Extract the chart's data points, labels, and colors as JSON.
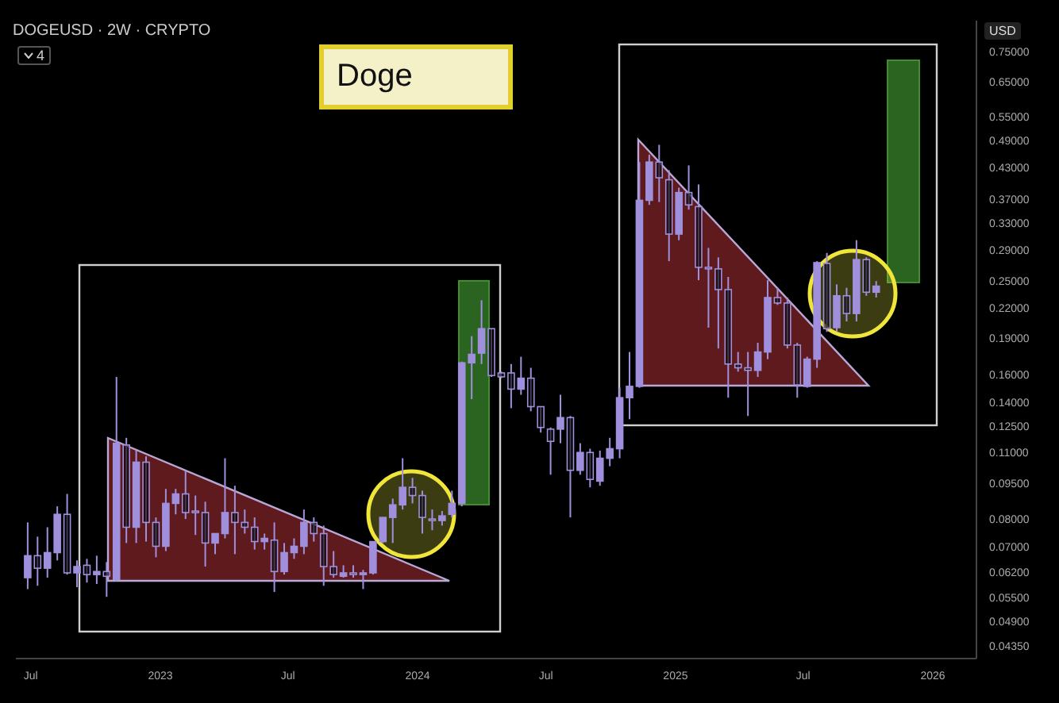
{
  "chart_data": {
    "type": "candlestick",
    "title": "DOGEUSD · 2W · CRYPTO",
    "ylabel": "USD",
    "annotations": [
      "Doge",
      "4"
    ],
    "log": true,
    "color": "#a08fdc",
    "x": [
      "2022-06-27",
      "2022-07-11",
      "2022-07-25",
      "2022-08-08",
      "2022-08-22",
      "2022-09-05",
      "2022-09-19",
      "2022-10-03",
      "2022-10-17",
      "2022-10-31",
      "2022-11-14",
      "2022-11-28",
      "2022-12-12",
      "2022-12-26",
      "2023-01-09",
      "2023-01-23",
      "2023-02-06",
      "2023-02-20",
      "2023-03-06",
      "2023-03-20",
      "2023-04-03",
      "2023-04-17",
      "2023-05-01",
      "2023-05-15",
      "2023-05-29",
      "2023-06-12",
      "2023-06-26",
      "2023-07-10",
      "2023-07-24",
      "2023-08-07",
      "2023-08-21",
      "2023-09-04",
      "2023-09-18",
      "2023-10-02",
      "2023-10-16",
      "2023-10-30",
      "2023-11-13",
      "2023-11-27",
      "2023-12-11",
      "2023-12-25",
      "2024-01-08",
      "2024-01-22",
      "2024-02-05",
      "2024-02-19",
      "2024-03-04",
      "2024-03-18",
      "2024-04-01",
      "2024-04-15",
      "2024-04-29",
      "2024-05-13",
      "2024-05-27",
      "2024-06-10",
      "2024-06-24",
      "2024-07-08",
      "2024-07-22",
      "2024-08-05",
      "2024-08-19",
      "2024-09-02",
      "2024-09-16",
      "2024-09-30",
      "2024-10-14",
      "2024-10-28",
      "2024-11-11",
      "2024-11-25",
      "2024-12-09",
      "2024-12-23",
      "2025-01-06",
      "2025-01-20",
      "2025-02-03",
      "2025-02-17",
      "2025-03-03",
      "2025-03-17",
      "2025-03-31",
      "2025-04-14",
      "2025-04-28",
      "2025-05-12",
      "2025-05-26",
      "2025-06-09",
      "2025-06-23",
      "2025-07-07",
      "2025-07-21",
      "2025-08-04",
      "2025-08-18",
      "2025-09-01",
      "2025-09-15",
      "2025-09-29",
      "2025-10-13"
    ],
    "ohlc": [
      [
        0.0604,
        0.0787,
        0.0572,
        0.0671
      ],
      [
        0.0671,
        0.0735,
        0.0581,
        0.0632
      ],
      [
        0.0632,
        0.0769,
        0.0604,
        0.0681
      ],
      [
        0.0681,
        0.085,
        0.0656,
        0.0818
      ],
      [
        0.0818,
        0.0902,
        0.0613,
        0.0618
      ],
      [
        0.0618,
        0.0656,
        0.0577,
        0.0637
      ],
      [
        0.0641,
        0.0661,
        0.059,
        0.0613
      ],
      [
        0.0613,
        0.0671,
        0.0586,
        0.0622
      ],
      [
        0.0622,
        0.0651,
        0.0551,
        0.0608
      ],
      [
        0.0599,
        0.158,
        0.0595,
        0.115
      ],
      [
        0.114,
        0.118,
        0.0713,
        0.0769
      ],
      [
        0.0769,
        0.111,
        0.0713,
        0.105
      ],
      [
        0.105,
        0.108,
        0.0718,
        0.0787
      ],
      [
        0.0787,
        0.0806,
        0.0666,
        0.0702
      ],
      [
        0.0702,
        0.0924,
        0.0686,
        0.0862
      ],
      [
        0.0862,
        0.0924,
        0.0818,
        0.0902
      ],
      [
        0.0902,
        0.101,
        0.08,
        0.0825
      ],
      [
        0.0831,
        0.0895,
        0.0741,
        0.0829
      ],
      [
        0.0825,
        0.0869,
        0.0637,
        0.0713
      ],
      [
        0.0713,
        0.0746,
        0.0676,
        0.0746
      ],
      [
        0.0746,
        0.107,
        0.0729,
        0.0825
      ],
      [
        0.0825,
        0.0938,
        0.0676,
        0.0787
      ],
      [
        0.0787,
        0.0837,
        0.0746,
        0.0769
      ],
      [
        0.0769,
        0.0806,
        0.0691,
        0.0718
      ],
      [
        0.0718,
        0.0746,
        0.0691,
        0.0729
      ],
      [
        0.0723,
        0.0787,
        0.0564,
        0.0622
      ],
      [
        0.0622,
        0.0713,
        0.0613,
        0.0681
      ],
      [
        0.0681,
        0.0729,
        0.0661,
        0.0702
      ],
      [
        0.0702,
        0.0837,
        0.0676,
        0.0787
      ],
      [
        0.0787,
        0.0806,
        0.0718,
        0.0746
      ],
      [
        0.0746,
        0.0775,
        0.0581,
        0.0637
      ],
      [
        0.0637,
        0.0686,
        0.0604,
        0.0613
      ],
      [
        0.0608,
        0.0641,
        0.0604,
        0.0618
      ],
      [
        0.0618,
        0.0641,
        0.0604,
        0.0613
      ],
      [
        0.0613,
        0.0627,
        0.0572,
        0.0618
      ],
      [
        0.0618,
        0.0718,
        0.0613,
        0.0718
      ],
      [
        0.0718,
        0.0806,
        0.0713,
        0.0806
      ],
      [
        0.0806,
        0.0882,
        0.0713,
        0.0856
      ],
      [
        0.0856,
        0.107,
        0.0837,
        0.0931
      ],
      [
        0.0931,
        0.0974,
        0.0862,
        0.0895
      ],
      [
        0.0895,
        0.0916,
        0.0746,
        0.0806
      ],
      [
        0.08,
        0.0837,
        0.0758,
        0.0794
      ],
      [
        0.0794,
        0.0831,
        0.0775,
        0.0812
      ],
      [
        0.0818,
        0.0916,
        0.0806,
        0.0862
      ],
      [
        0.0862,
        0.17,
        0.085,
        0.169
      ],
      [
        0.169,
        0.192,
        0.142,
        0.176
      ],
      [
        0.177,
        0.228,
        0.168,
        0.199
      ],
      [
        0.199,
        0.199,
        0.158,
        0.159
      ],
      [
        0.161,
        0.162,
        0.157,
        0.158
      ],
      [
        0.161,
        0.168,
        0.136,
        0.149
      ],
      [
        0.149,
        0.174,
        0.145,
        0.157
      ],
      [
        0.157,
        0.165,
        0.134,
        0.137
      ],
      [
        0.137,
        0.137,
        0.121,
        0.124
      ],
      [
        0.123,
        0.124,
        0.0989,
        0.116
      ],
      [
        0.123,
        0.145,
        0.115,
        0.13
      ],
      [
        0.13,
        0.131,
        0.0806,
        0.101
      ],
      [
        0.101,
        0.115,
        0.0989,
        0.11
      ],
      [
        0.11,
        0.112,
        0.0931,
        0.0967
      ],
      [
        0.0959,
        0.111,
        0.0938,
        0.107
      ],
      [
        0.107,
        0.118,
        0.103,
        0.112
      ],
      [
        0.112,
        0.15,
        0.107,
        0.143
      ],
      [
        0.143,
        0.178,
        0.129,
        0.151
      ],
      [
        0.151,
        0.442,
        0.15,
        0.368
      ],
      [
        0.368,
        0.458,
        0.36,
        0.442
      ],
      [
        0.442,
        0.48,
        0.365,
        0.41
      ],
      [
        0.406,
        0.425,
        0.275,
        0.313
      ],
      [
        0.313,
        0.391,
        0.304,
        0.382
      ],
      [
        0.382,
        0.435,
        0.352,
        0.36
      ],
      [
        0.357,
        0.397,
        0.251,
        0.267
      ],
      [
        0.267,
        0.293,
        0.2,
        0.265
      ],
      [
        0.265,
        0.28,
        0.181,
        0.24
      ],
      [
        0.24,
        0.255,
        0.143,
        0.168
      ],
      [
        0.168,
        0.178,
        0.162,
        0.165
      ],
      [
        0.165,
        0.178,
        0.131,
        0.163
      ],
      [
        0.163,
        0.186,
        0.158,
        0.178
      ],
      [
        0.178,
        0.251,
        0.172,
        0.231
      ],
      [
        0.231,
        0.242,
        0.223,
        0.225
      ],
      [
        0.225,
        0.231,
        0.181,
        0.184
      ],
      [
        0.184,
        0.186,
        0.143,
        0.152
      ],
      [
        0.151,
        0.174,
        0.15,
        0.172
      ],
      [
        0.172,
        0.275,
        0.165,
        0.273
      ],
      [
        0.272,
        0.286,
        0.196,
        0.199
      ],
      [
        0.2,
        0.246,
        0.196,
        0.233
      ],
      [
        0.233,
        0.242,
        0.206,
        0.214
      ],
      [
        0.214,
        0.304,
        0.206,
        0.277
      ],
      [
        0.277,
        0.28,
        0.233,
        0.237
      ],
      [
        0.237,
        0.25,
        0.231,
        0.244
      ]
    ],
    "xlim": [
      "2022-06-10",
      "2026-03-04"
    ],
    "xticks": [
      {
        "value": "2022-07-01",
        "label": "Jul"
      },
      {
        "value": "2023-01-01",
        "label": "2023"
      },
      {
        "value": "2023-07-01",
        "label": "Jul"
      },
      {
        "value": "2024-01-01",
        "label": "2024"
      },
      {
        "value": "2024-07-01",
        "label": "Jul"
      },
      {
        "value": "2025-01-01",
        "label": "2025"
      },
      {
        "value": "2025-07-01",
        "label": "Jul"
      },
      {
        "value": "2026-01-01",
        "label": "2026"
      }
    ],
    "ylim": [
      0.041,
      0.87
    ],
    "yticks": [
      {
        "value": 0.0435,
        "label": "0.04350"
      },
      {
        "value": 0.049,
        "label": "0.04900"
      },
      {
        "value": 0.055,
        "label": "0.05500"
      },
      {
        "value": 0.062,
        "label": "0.06200"
      },
      {
        "value": 0.07,
        "label": "0.07000"
      },
      {
        "value": 0.08,
        "label": "0.08000"
      },
      {
        "value": 0.095,
        "label": "0.09500"
      },
      {
        "value": 0.11,
        "label": "0.11000"
      },
      {
        "value": 0.125,
        "label": "0.12500"
      },
      {
        "value": 0.14,
        "label": "0.14000"
      },
      {
        "value": 0.16,
        "label": "0.16000"
      },
      {
        "value": 0.19,
        "label": "0.19000"
      },
      {
        "value": 0.22,
        "label": "0.22000"
      },
      {
        "value": 0.25,
        "label": "0.25000"
      },
      {
        "value": 0.29,
        "label": "0.29000"
      },
      {
        "value": 0.33,
        "label": "0.33000"
      },
      {
        "value": 0.37,
        "label": "0.37000"
      },
      {
        "value": 0.43,
        "label": "0.43000"
      },
      {
        "value": 0.49,
        "label": "0.49000"
      },
      {
        "value": 0.55,
        "label": "0.55000"
      },
      {
        "value": 0.65,
        "label": "0.65000"
      },
      {
        "value": 0.75,
        "label": "0.75000"
      }
    ]
  }
}
